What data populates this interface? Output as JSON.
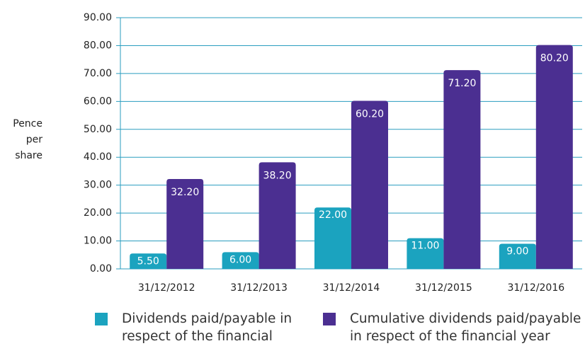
{
  "chart_data": {
    "type": "bar",
    "y_label": "Pence per share",
    "categories": [
      "31/12/2012",
      "31/12/2013",
      "31/12/2014",
      "31/12/2015",
      "31/12/2016"
    ],
    "series": [
      {
        "name": "Dividends paid/payable in respect of the financial year",
        "color": "#1ba3bf",
        "values": [
          5.5,
          6,
          22,
          11,
          9
        ],
        "value_labels": [
          "5.50",
          "6.00",
          "22.00",
          "11.00",
          "9.00"
        ]
      },
      {
        "name": "Cumulative dividends paid/payable in respect of the financial year",
        "color": "#4b2f91",
        "values": [
          32.2,
          38.2,
          60.2,
          71.2,
          80.2
        ],
        "value_labels": [
          "32.20",
          "38.20",
          "60.20",
          "71.20",
          "80.20"
        ]
      }
    ],
    "ylim": [
      0,
      90
    ],
    "yticks": [
      {
        "value": 0,
        "label": "0.00"
      },
      {
        "value": 10,
        "label": "10.00"
      },
      {
        "value": 20,
        "label": "20.00"
      },
      {
        "value": 30,
        "label": "30.00"
      },
      {
        "value": 40,
        "label": "40.00"
      },
      {
        "value": 50,
        "label": "50.00"
      },
      {
        "value": 60,
        "label": "60.00"
      },
      {
        "value": 70,
        "label": "70.00"
      },
      {
        "value": 80,
        "label": "80.00"
      },
      {
        "value": 90,
        "label": "90.00"
      }
    ],
    "grid": true
  }
}
